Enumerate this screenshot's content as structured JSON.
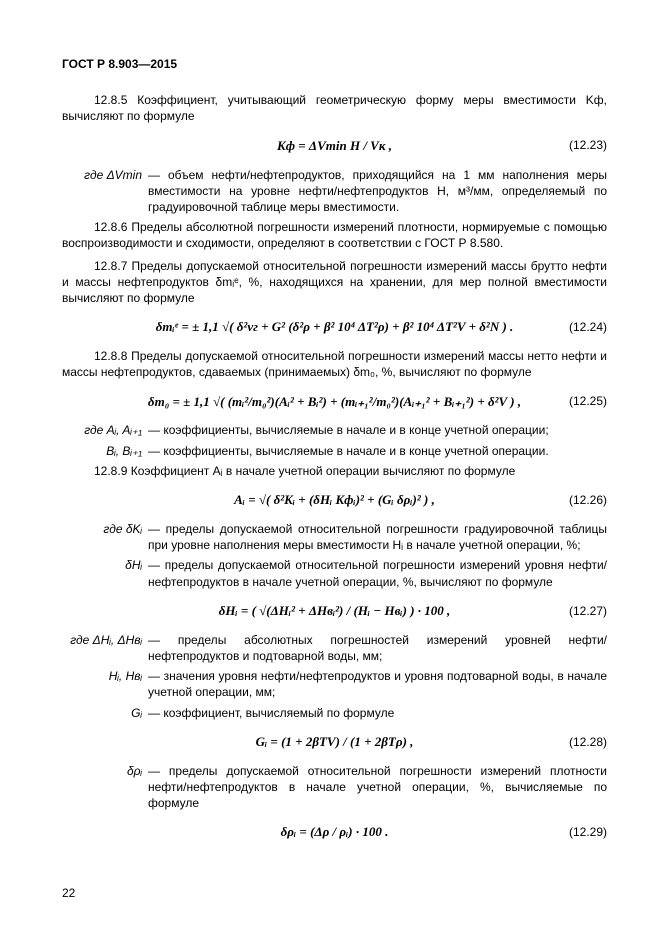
{
  "header": "ГОСТ Р 8.903—2015",
  "page_number": "22",
  "p_12_8_5": "12.8.5 Коэффициент, учитывающий геометрическую форму меры вместимости Kф, вычисляют по формуле",
  "eq_12_23": {
    "formula": "Kф = ΔVmin H / Vк ,",
    "num": "(12.23)"
  },
  "where_12_23_sym": "где ΔVmin",
  "where_12_23_txt": "— объем нефти/нефтепродуктов, приходящийся на 1 мм наполнения меры вместимости на уровне нефти/нефтепродуктов H, м³/мм, определяемый по градуировочной таблице меры вместимости.",
  "p_12_8_6": "12.8.6 Пределы абсолютной погрешности измерений плотности, нормируемые с помощью воспроизводимости и сходимости, определяют в соответствии с ГОСТ Р 8.580.",
  "p_12_8_7": "12.8.7 Пределы допускаемой относительной погрешности измерений массы брутто нефти и массы нефтепродуктов δmᵢᵉ, %, находящихся на хранении, для мер полной вместимости вычисляют по формуле",
  "eq_12_24": {
    "formula": "δmᵢᵉ = ± 1,1 √( δ²vг + G² (δ²ρ + β² 10⁴ ΔT²ρ) + β² 10⁴ ΔT²V + δ²N ) .",
    "num": "(12.24)"
  },
  "p_12_8_8": "12.8.8 Пределы допускаемой относительной погрешности измерений массы нетто нефти и массы нефтепродуктов, сдаваемых (принимаемых) δm₀, %, вычисляют по формуле",
  "eq_12_25": {
    "formula": "δm₀ = ± 1,1 √( (mᵢ²/m₀²)(Aᵢ² + Bᵢ²) + (mᵢ₊₁²/m₀²)(Aᵢ₊₁² + Bᵢ₊₁²) + δ²V ) ,",
    "num": "(12.25)"
  },
  "where_12_25_a_sym": "где Aᵢ, Aᵢ₊₁",
  "where_12_25_a_txt": "— коэффициенты, вычисляемые в начале и в конце учетной операции;",
  "where_12_25_b_sym": "Bᵢ, Bᵢ₊₁",
  "where_12_25_b_txt": "— коэффициенты, вычисляемые в начале и в конце учетной операции.",
  "p_12_8_9": "12.8.9 Коэффициент Aᵢ в начале учетной операции вычисляют по формуле",
  "eq_12_26": {
    "formula": "Aᵢ = √( δ²Kᵢ + (δHᵢ Kфᵢ)² + (Gᵢ δρᵢ)² ) ,",
    "num": "(12.26)"
  },
  "where_12_26_a_sym": "где   δKᵢ",
  "where_12_26_a_txt": "— пределы допускаемой относительной погрешности градуировочной таблицы при уровне наполнения меры вместимости Hᵢ в начале учетной операции, %;",
  "where_12_26_b_sym": "δHᵢ",
  "where_12_26_b_txt": "— пределы допускаемой относительной погрешности измерений уровня нефти/нефтепродуктов в начале учетной операции, %, вычисляют по формуле",
  "eq_12_27": {
    "formula": "δHᵢ = ( √(ΔHᵢ² + ΔHвᵢ²) / (Hᵢ − Hвᵢ) ) · 100 ,",
    "num": "(12.27)"
  },
  "where_12_27_a_sym": "где ΔHᵢ, ΔHвᵢ",
  "where_12_27_a_txt": "— пределы абсолютных погрешностей измерений уровней нефти/нефтепродуктов и подтоварной воды, мм;",
  "where_12_27_b_sym": "Hᵢ, Hвᵢ",
  "where_12_27_b_txt": "— значения уровня нефти/нефтепродуктов и уровня подтоварной воды, в начале учетной операции, мм;",
  "where_12_27_c_sym": "Gᵢ",
  "where_12_27_c_txt": "— коэффициент, вычисляемый по формуле",
  "eq_12_28": {
    "formula": "Gᵢ = (1 + 2βTV) / (1 + 2βTρ) ,",
    "num": "(12.28)"
  },
  "where_12_28_sym": "δρᵢ",
  "where_12_28_txt": "— пределы допускаемой относительной погрешности измерений плотности нефти/нефтепродуктов в начале учетной операции, %, вычисляемые по формуле",
  "eq_12_29": {
    "formula": "δρᵢ = (Δρ / ρᵢ) · 100 .",
    "num": "(12.29)"
  }
}
